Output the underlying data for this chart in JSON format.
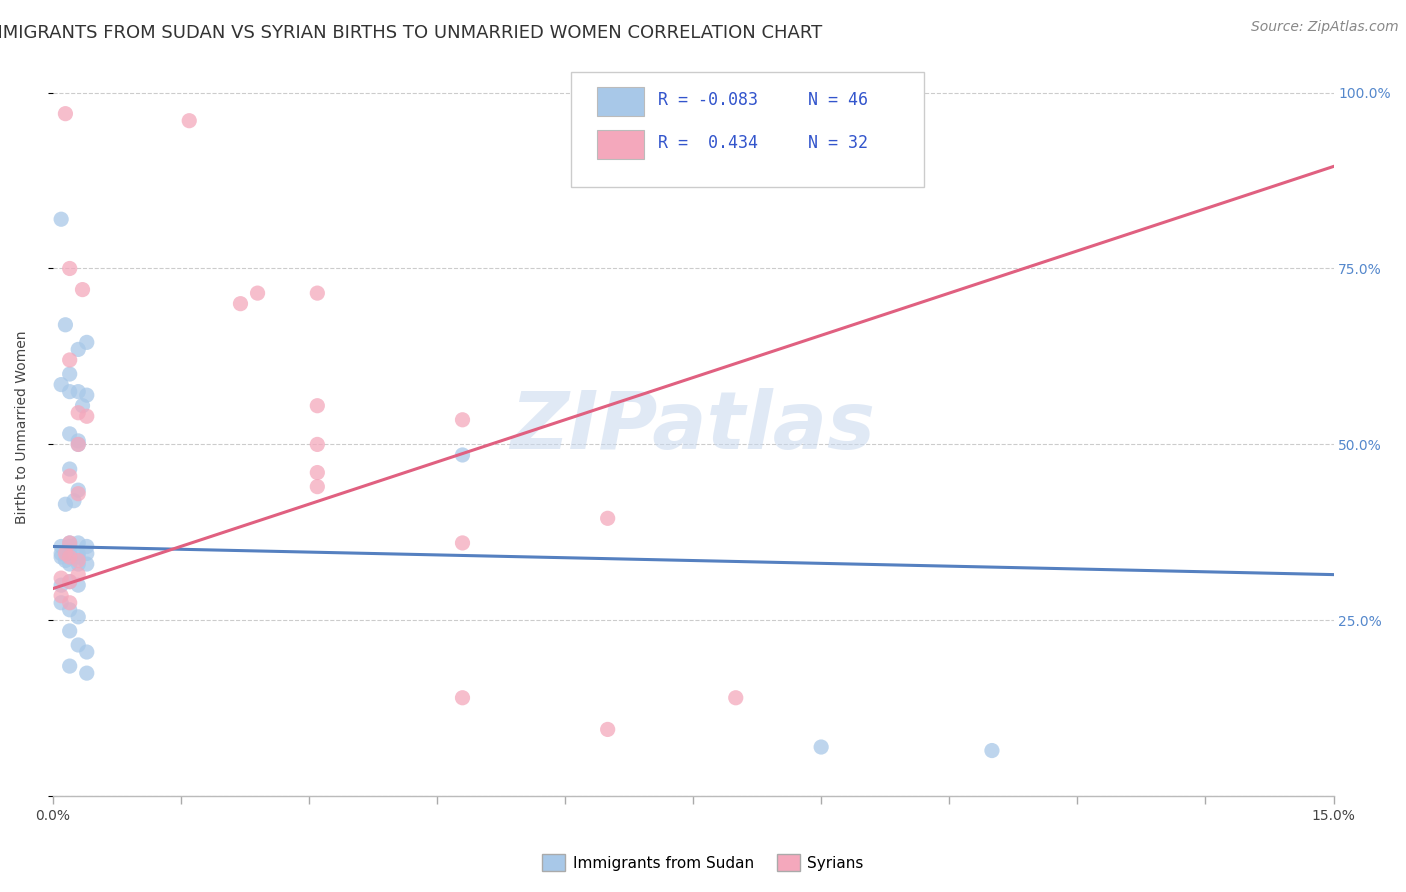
{
  "title": "IMMIGRANTS FROM SUDAN VS SYRIAN BIRTHS TO UNMARRIED WOMEN CORRELATION CHART",
  "source": "Source: ZipAtlas.com",
  "ylabel": "Births to Unmarried Women",
  "xlim": [
    0.0,
    0.15
  ],
  "ylim": [
    0.0,
    1.05
  ],
  "watermark": "ZIPatlas",
  "sudan_color": "#a8c8e8",
  "syrian_color": "#f4a8bc",
  "sudan_line_color": "#5580c0",
  "syrian_line_color": "#e06080",
  "sudan_line": [
    0.0,
    0.355,
    0.15,
    0.315
  ],
  "syrian_line": [
    0.0,
    0.295,
    0.15,
    0.895
  ],
  "sudan_points": [
    [
      0.0015,
      0.335
    ],
    [
      0.002,
      0.355
    ],
    [
      0.003,
      0.345
    ],
    [
      0.004,
      0.345
    ],
    [
      0.001,
      0.355
    ],
    [
      0.002,
      0.345
    ],
    [
      0.003,
      0.34
    ],
    [
      0.004,
      0.33
    ],
    [
      0.0015,
      0.415
    ],
    [
      0.0025,
      0.42
    ],
    [
      0.003,
      0.435
    ],
    [
      0.002,
      0.465
    ],
    [
      0.003,
      0.5
    ],
    [
      0.0035,
      0.555
    ],
    [
      0.004,
      0.57
    ],
    [
      0.002,
      0.6
    ],
    [
      0.003,
      0.635
    ],
    [
      0.004,
      0.645
    ],
    [
      0.0015,
      0.67
    ],
    [
      0.001,
      0.585
    ],
    [
      0.002,
      0.575
    ],
    [
      0.003,
      0.575
    ],
    [
      0.002,
      0.515
    ],
    [
      0.003,
      0.505
    ],
    [
      0.001,
      0.34
    ],
    [
      0.002,
      0.36
    ],
    [
      0.003,
      0.36
    ],
    [
      0.004,
      0.355
    ],
    [
      0.001,
      0.345
    ],
    [
      0.002,
      0.33
    ],
    [
      0.003,
      0.33
    ],
    [
      0.001,
      0.3
    ],
    [
      0.002,
      0.305
    ],
    [
      0.003,
      0.3
    ],
    [
      0.001,
      0.275
    ],
    [
      0.002,
      0.265
    ],
    [
      0.003,
      0.255
    ],
    [
      0.002,
      0.235
    ],
    [
      0.003,
      0.215
    ],
    [
      0.004,
      0.205
    ],
    [
      0.002,
      0.185
    ],
    [
      0.004,
      0.175
    ],
    [
      0.001,
      0.82
    ],
    [
      0.048,
      0.485
    ],
    [
      0.09,
      0.07
    ],
    [
      0.11,
      0.065
    ]
  ],
  "syrian_points": [
    [
      0.0015,
      0.345
    ],
    [
      0.002,
      0.34
    ],
    [
      0.003,
      0.335
    ],
    [
      0.001,
      0.31
    ],
    [
      0.002,
      0.305
    ],
    [
      0.003,
      0.315
    ],
    [
      0.001,
      0.285
    ],
    [
      0.002,
      0.275
    ],
    [
      0.002,
      0.36
    ],
    [
      0.003,
      0.43
    ],
    [
      0.002,
      0.455
    ],
    [
      0.003,
      0.5
    ],
    [
      0.003,
      0.545
    ],
    [
      0.004,
      0.54
    ],
    [
      0.002,
      0.62
    ],
    [
      0.0035,
      0.72
    ],
    [
      0.002,
      0.75
    ],
    [
      0.016,
      0.96
    ],
    [
      0.0015,
      0.97
    ],
    [
      0.022,
      0.7
    ],
    [
      0.024,
      0.715
    ],
    [
      0.031,
      0.715
    ],
    [
      0.031,
      0.555
    ],
    [
      0.031,
      0.5
    ],
    [
      0.031,
      0.46
    ],
    [
      0.031,
      0.44
    ],
    [
      0.048,
      0.36
    ],
    [
      0.048,
      0.14
    ],
    [
      0.048,
      0.535
    ],
    [
      0.065,
      0.395
    ],
    [
      0.065,
      0.095
    ],
    [
      0.08,
      0.14
    ]
  ],
  "grid_color": "#cccccc",
  "background_color": "#ffffff",
  "title_fontsize": 13,
  "axis_label_fontsize": 10,
  "tick_fontsize": 10,
  "source_fontsize": 10
}
